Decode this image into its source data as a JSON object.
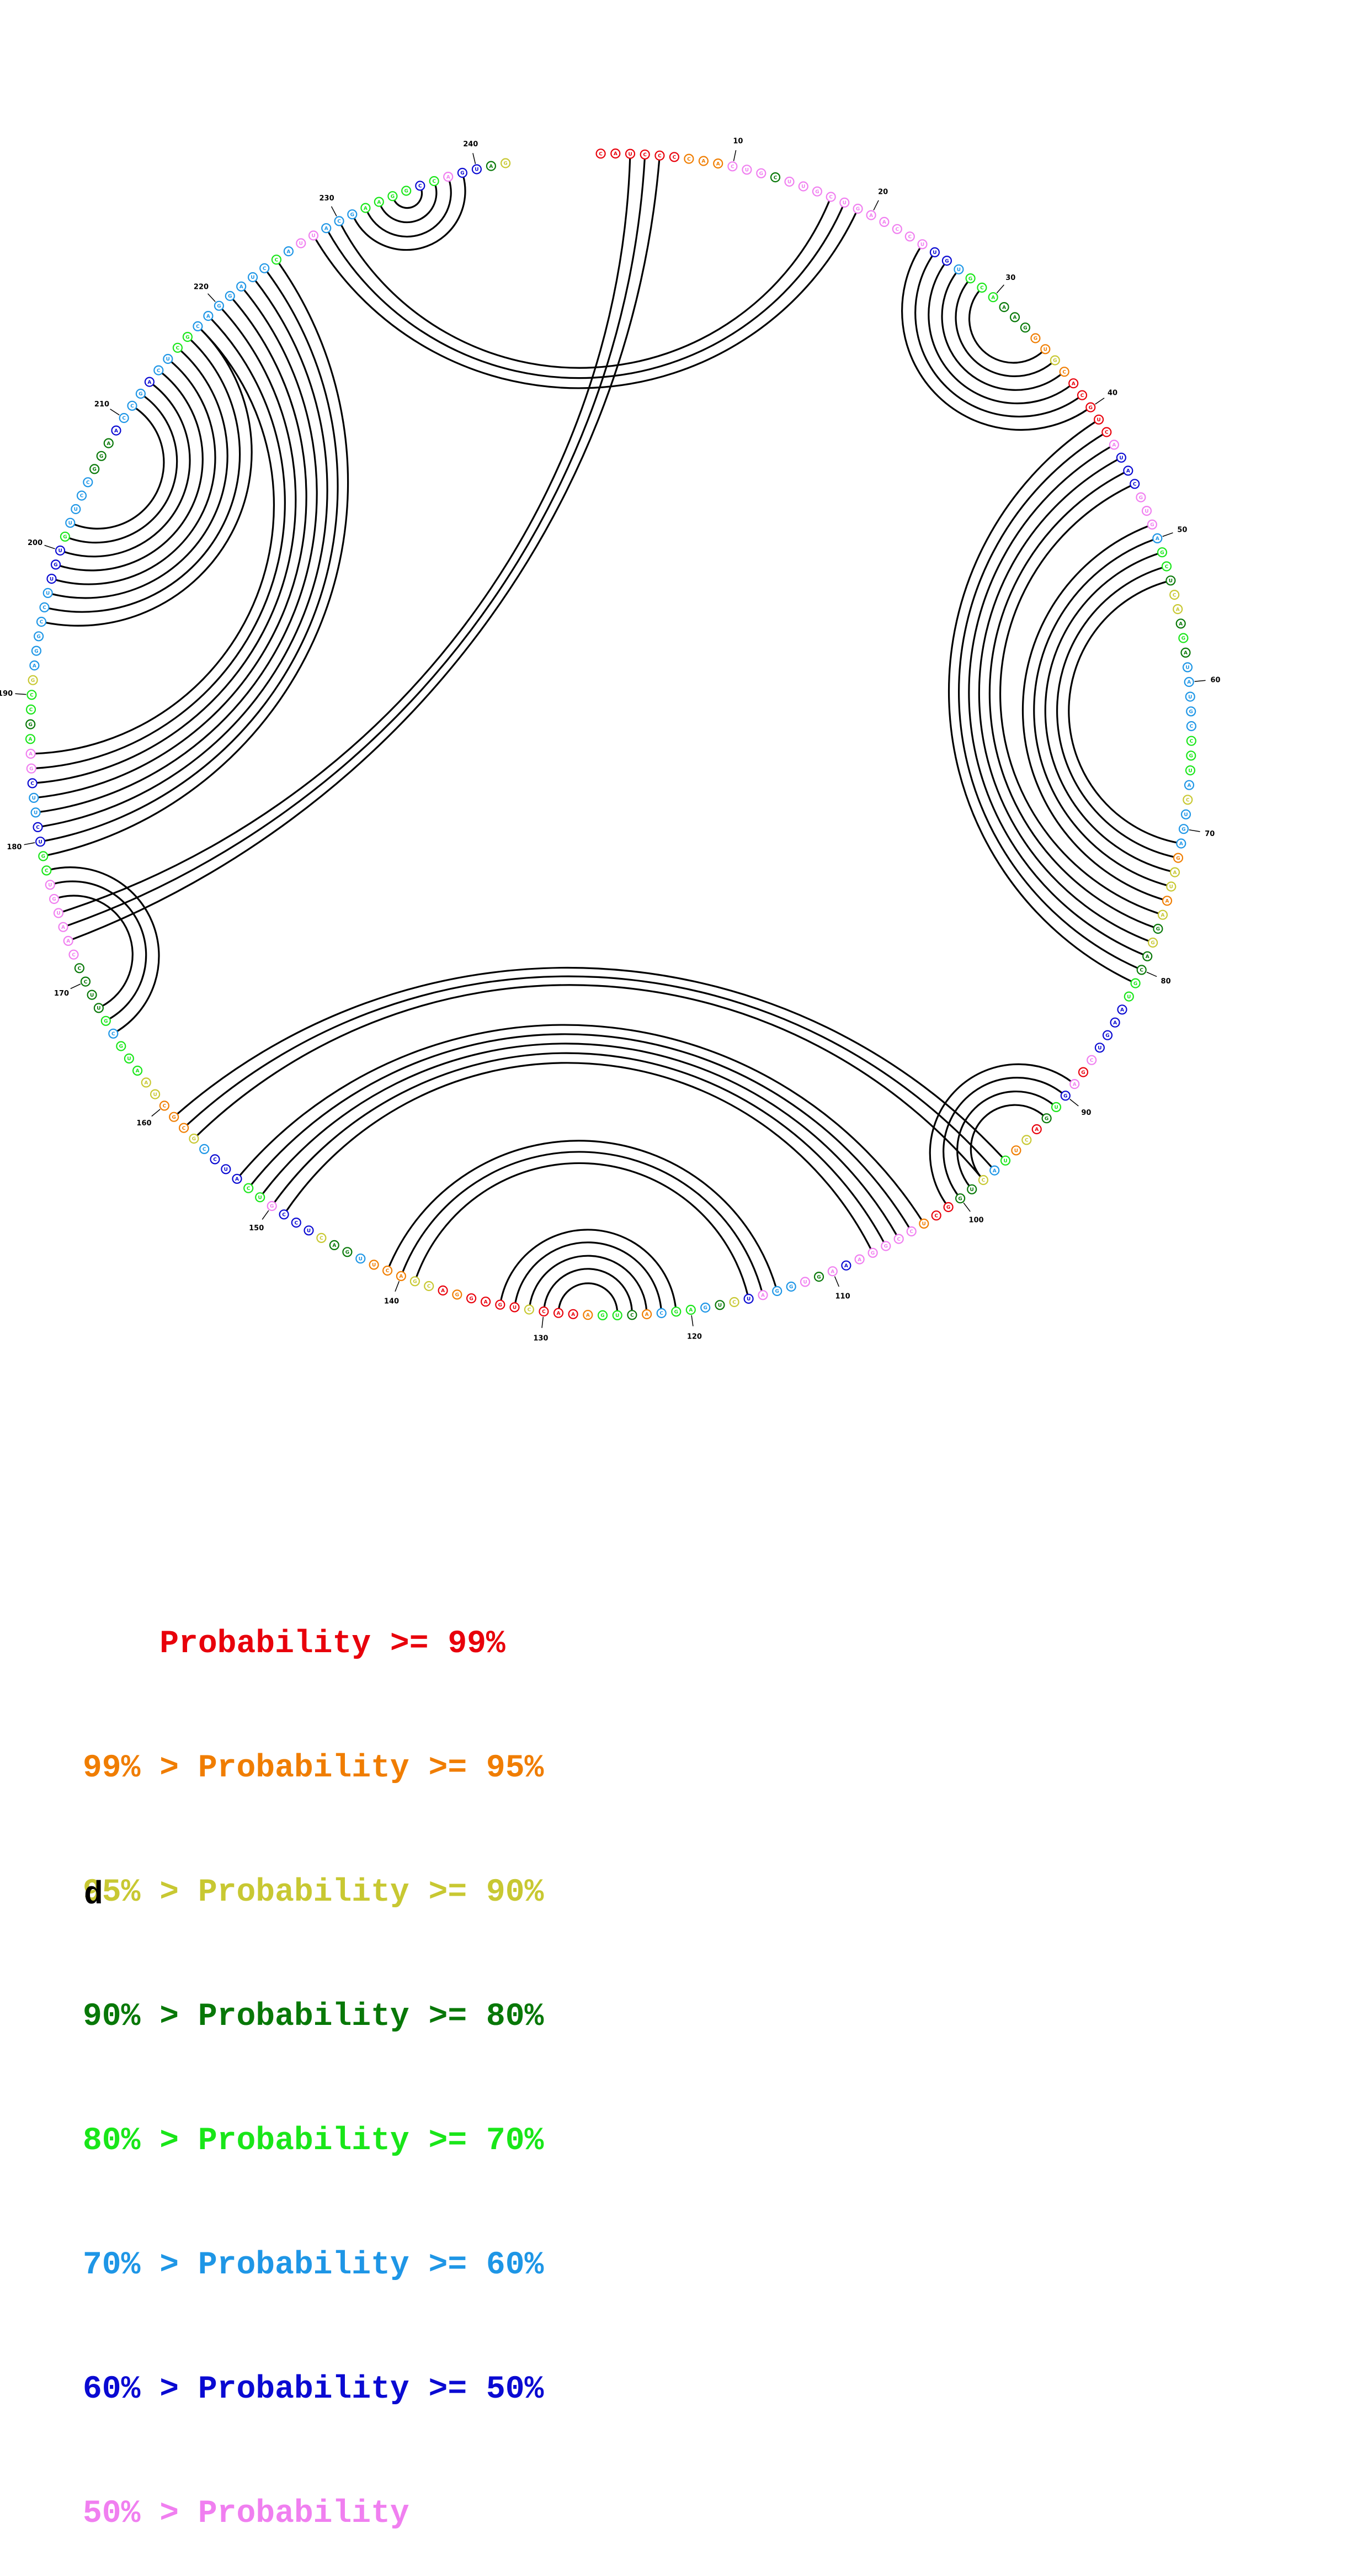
{
  "figure": {
    "panel_letter": "d",
    "sequence_length": 242,
    "sequence_start_label": "C",
    "position_labels": [
      "10",
      "20",
      "30",
      "40",
      "50",
      "60",
      "70",
      "80",
      "90",
      "100",
      "110",
      "120",
      "130",
      "140",
      "150",
      "160",
      "170",
      "180",
      "190",
      "200",
      "210",
      "220",
      "230",
      "240"
    ],
    "helices": [
      {
        "i": 3,
        "j": 175,
        "length": 3
      },
      {
        "i": 17,
        "j": 230,
        "length": 3
      },
      {
        "i": 24,
        "j": 40,
        "length": 6
      },
      {
        "i": 41,
        "j": 81,
        "length": 6
      },
      {
        "i": 49,
        "j": 75,
        "length": 5
      },
      {
        "i": 89,
        "j": 101,
        "length": 4
      },
      {
        "i": 96,
        "j": 159,
        "length": 3
      },
      {
        "i": 103,
        "j": 153,
        "length": 5
      },
      {
        "i": 114,
        "j": 141,
        "length": 3
      },
      {
        "i": 121,
        "j": 133,
        "length": 5
      },
      {
        "i": 166,
        "j": 178,
        "length": 3
      },
      {
        "i": 179,
        "j": 225,
        "length": 8
      },
      {
        "i": 195,
        "j": 218,
        "length": 8
      },
      {
        "i": 231,
        "j": 239,
        "length": 5
      }
    ],
    "prob_colors": [
      "#e8000b",
      "#f07d00",
      "#c8c832",
      "#087808",
      "#19e619",
      "#1e96e6",
      "#0a0ad2",
      "#f07ff0"
    ],
    "nucleotide_classes": "0000001117773777777777776654443331121000007666777544322343555554445255512212323344666670764302145233001777776737557623544513441000200001022111533266674466652111224445433337777774466556774344255555566645555333655565544555555545775554444647663210",
    "nucleotide_letters": "CAUCCCCAACUGCUUGCUGAACCUUGUGCAAAGGUGCACGUCAUACGUGAGCUCAAGAUAUGCCGUACUGAGAUAAGGACGUAAGUCGAGUGACUUACUGGCUCCGGAAAGUGGAUCUGAGCACUGAAACCUGAGGACGACUUGACUCCGUCAUCCGCGCUAAUGCGUUCCCAAUGUCGUCUUCGAAGCCGAGGCCUUGUGUUCCGGAACCGACUCGCAGGAUCCAUUACGAAGGCCAGUAGG"
  },
  "legend": [
    {
      "prefix": "    ",
      "label": "Probability >= 99%",
      "color": "#e8000b"
    },
    {
      "prefix": "99% > ",
      "label": "Probability >= 95%",
      "color": "#f07d00"
    },
    {
      "prefix": "95% > ",
      "label": "Probability >= 90%",
      "color": "#c8c832"
    },
    {
      "prefix": "90% > ",
      "label": "Probability >= 80%",
      "color": "#087808"
    },
    {
      "prefix": "80% > ",
      "label": "Probability >= 70%",
      "color": "#19e619"
    },
    {
      "prefix": "70% > ",
      "label": "Probability >= 60%",
      "color": "#1e96e6"
    },
    {
      "prefix": "60% > ",
      "label": "Probability >= 50%",
      "color": "#0a0ad2"
    },
    {
      "prefix": "50% > ",
      "label": "Probability",
      "color": "#f07ff0"
    }
  ]
}
